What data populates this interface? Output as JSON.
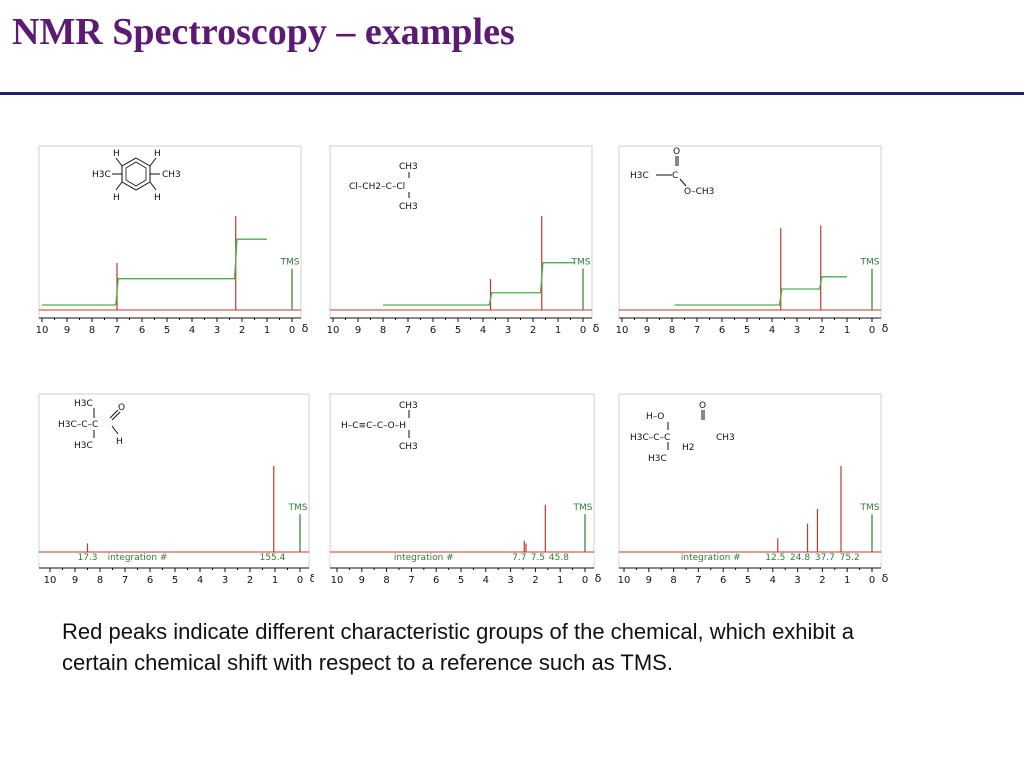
{
  "slide": {
    "title": "NMR Spectroscopy – examples",
    "caption": "Red peaks indicate different characteristic groups of the chemical, which exhibit a certain chemical shift with respect to a reference such as TMS."
  },
  "colors": {
    "title": "#5b1a73",
    "rule": "#1f1f6b",
    "peak": "#c0392b",
    "integral": "#4caf50",
    "tms": "#2e7d32",
    "axis": "#111111"
  },
  "chart_data": [
    {
      "type": "nmr-1h",
      "molecule_labels": [
        "H",
        "H",
        "H3C",
        "CH3",
        "H",
        "H"
      ],
      "x_ticks": [
        "10",
        "9",
        "8",
        "7",
        "6",
        "5",
        "4",
        "3",
        "2",
        "1",
        "0",
        "δ"
      ],
      "xlim": [
        10,
        0
      ],
      "reference_label": "TMS",
      "reference_ppm": 0,
      "peaks": [
        {
          "ppm": 7.0,
          "rel_height": 0.5
        },
        {
          "ppm": 2.25,
          "rel_height": 1.0
        }
      ],
      "integration_curve": [
        [
          10,
          0.0
        ],
        [
          7.05,
          0.0
        ],
        [
          6.95,
          0.28
        ],
        [
          2.3,
          0.28
        ],
        [
          2.2,
          0.7
        ],
        [
          1.0,
          0.7
        ]
      ]
    },
    {
      "type": "nmr-1h",
      "molecule_labels": [
        "CH3",
        "Cl–CH2–C–Cl",
        "CH3"
      ],
      "x_ticks": [
        "10",
        "9",
        "8",
        "7",
        "6",
        "5",
        "4",
        "3",
        "2",
        "1",
        "0",
        "δ"
      ],
      "xlim": [
        10,
        0
      ],
      "reference_label": "TMS",
      "reference_ppm": 0,
      "peaks": [
        {
          "ppm": 3.7,
          "rel_height": 0.33
        },
        {
          "ppm": 1.65,
          "rel_height": 1.0
        }
      ],
      "integration_curve": [
        [
          8,
          0.0
        ],
        [
          3.75,
          0.0
        ],
        [
          3.65,
          0.13
        ],
        [
          1.7,
          0.13
        ],
        [
          1.6,
          0.45
        ],
        [
          0.3,
          0.45
        ]
      ]
    },
    {
      "type": "nmr-1h",
      "molecule_labels": [
        "O",
        "H3C",
        "C",
        "O–CH3"
      ],
      "x_ticks": [
        "10",
        "9",
        "8",
        "7",
        "6",
        "5",
        "4",
        "3",
        "2",
        "1",
        "0",
        "δ"
      ],
      "xlim": [
        10,
        0
      ],
      "reference_label": "TMS",
      "reference_ppm": 0,
      "peaks": [
        {
          "ppm": 3.65,
          "rel_height": 0.87
        },
        {
          "ppm": 2.05,
          "rel_height": 0.9
        }
      ],
      "integration_curve": [
        [
          7.9,
          0.0
        ],
        [
          3.7,
          0.0
        ],
        [
          3.6,
          0.17
        ],
        [
          2.1,
          0.17
        ],
        [
          2.0,
          0.3
        ],
        [
          1.0,
          0.3
        ]
      ]
    },
    {
      "type": "nmr-13c",
      "molecule_labels": [
        "H3C",
        "O",
        "H3C–C–C",
        "H3C",
        "H"
      ],
      "x_ticks": [
        "10",
        "9",
        "8",
        "7",
        "6",
        "5",
        "4",
        "3",
        "2",
        "1",
        "0",
        "δ"
      ],
      "xlim": [
        10,
        0
      ],
      "reference_label": "TMS",
      "reference_ppm": 0,
      "integration_label": "integration #",
      "integration_values": [
        {
          "text": "17.3",
          "ppm": 8.5
        },
        {
          "text": "155.4",
          "ppm": 1.1
        }
      ],
      "peaks": [
        {
          "ppm": 8.5,
          "rel_height": 0.1
        },
        {
          "ppm": 1.05,
          "rel_height": 1.0
        }
      ]
    },
    {
      "type": "nmr-13c",
      "molecule_labels": [
        "CH3",
        "H–C≡C–C–O–H",
        "CH3"
      ],
      "x_ticks": [
        "10",
        "9",
        "8",
        "7",
        "6",
        "5",
        "4",
        "3",
        "2",
        "1",
        "0",
        "δ"
      ],
      "xlim": [
        10,
        0
      ],
      "reference_label": "TMS",
      "reference_ppm": 0,
      "integration_label": "integration #",
      "integration_values": [
        {
          "text": "7.7",
          "ppm": 2.65
        },
        {
          "text": "7.5",
          "ppm": 1.9
        },
        {
          "text": "45.8",
          "ppm": 1.05
        }
      ],
      "peaks": [
        {
          "ppm": 2.45,
          "rel_height": 0.13
        },
        {
          "ppm": 2.38,
          "rel_height": 0.1
        },
        {
          "ppm": 1.6,
          "rel_height": 0.55
        }
      ]
    },
    {
      "type": "nmr-13c",
      "molecule_labels": [
        "H–O",
        "O",
        "H3C–C–C",
        "CH3",
        "H2",
        "H3C"
      ],
      "x_ticks": [
        "10",
        "9",
        "8",
        "7",
        "6",
        "5",
        "4",
        "3",
        "2",
        "1",
        "0",
        "δ"
      ],
      "xlim": [
        10,
        0
      ],
      "reference_label": "TMS",
      "reference_ppm": 0,
      "integration_label": "integration #",
      "integration_values": [
        {
          "text": "12.5",
          "ppm": 3.9
        },
        {
          "text": "24.8",
          "ppm": 2.9
        },
        {
          "text": "37.7",
          "ppm": 1.9
        },
        {
          "text": "75.2",
          "ppm": 0.9
        }
      ],
      "peaks": [
        {
          "ppm": 3.8,
          "rel_height": 0.16
        },
        {
          "ppm": 2.6,
          "rel_height": 0.33
        },
        {
          "ppm": 2.2,
          "rel_height": 0.5
        },
        {
          "ppm": 1.25,
          "rel_height": 1.0
        }
      ]
    }
  ]
}
